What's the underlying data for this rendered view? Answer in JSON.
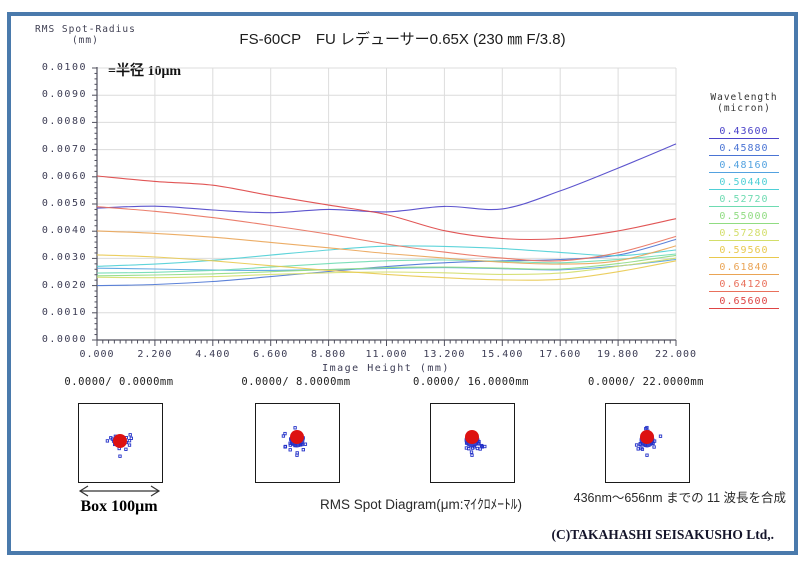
{
  "frame": {
    "border_color": "#4a7aac"
  },
  "chart_data": {
    "type": "line",
    "title": "FS-60CP　FU レデューサー0.65X (230 ㎜ F/3.8)",
    "y_axis_title_line1": "RMS Spot-Radius",
    "y_axis_title_line2": "(mm)",
    "annotation": "=半径 10μm",
    "xlabel": "Image Height (mm)",
    "xlim": [
      0,
      22
    ],
    "ylim": [
      0,
      0.01
    ],
    "grid": true,
    "xticks": [
      "0.000",
      "2.200",
      "4.400",
      "6.600",
      "8.800",
      "11.000",
      "13.200",
      "15.400",
      "17.600",
      "19.800",
      "22.000"
    ],
    "yticks_top_to_bottom": [
      "0.0100",
      "0.0090",
      "0.0080",
      "0.0070",
      "0.0060",
      "0.0050",
      "0.0040",
      "0.0030",
      "0.0020",
      "0.0010",
      "0.0000"
    ],
    "x": [
      0,
      2.2,
      4.4,
      6.6,
      8.8,
      11,
      13.2,
      15.4,
      17.6,
      19.8,
      22
    ],
    "legend": {
      "position": "right",
      "title_line1": "Wavelength",
      "title_line2": "(micron)"
    },
    "series": [
      {
        "name": "0.43600",
        "color": "#4b43c9",
        "values": [
          0.00485,
          0.00492,
          0.00478,
          0.00468,
          0.0048,
          0.00471,
          0.00491,
          0.00482,
          0.00548,
          0.00632,
          0.00721
        ]
      },
      {
        "name": "0.45880",
        "color": "#4a74d4",
        "values": [
          0.002,
          0.00204,
          0.00215,
          0.00233,
          0.00252,
          0.0027,
          0.00284,
          0.00291,
          0.00296,
          0.00312,
          0.0037
        ]
      },
      {
        "name": "0.48160",
        "color": "#53a2e0",
        "values": [
          0.00264,
          0.00261,
          0.00257,
          0.00256,
          0.00259,
          0.00263,
          0.00266,
          0.00262,
          0.00258,
          0.00272,
          0.00296
        ]
      },
      {
        "name": "0.50440",
        "color": "#4ecfd6",
        "values": [
          0.00271,
          0.00279,
          0.00293,
          0.00312,
          0.00331,
          0.00345,
          0.00344,
          0.00336,
          0.00322,
          0.0031,
          0.00331
        ]
      },
      {
        "name": "0.52720",
        "color": "#6edbb2",
        "values": [
          0.00246,
          0.00249,
          0.00256,
          0.00268,
          0.00281,
          0.00291,
          0.00294,
          0.00289,
          0.00284,
          0.00296,
          0.00316
        ]
      },
      {
        "name": "0.55000",
        "color": "#90dc82",
        "values": [
          0.00236,
          0.00239,
          0.00243,
          0.00251,
          0.00259,
          0.00266,
          0.00268,
          0.00264,
          0.00261,
          0.00281,
          0.00311
        ]
      },
      {
        "name": "0.57280",
        "color": "#d3de6a",
        "values": [
          0.00231,
          0.00229,
          0.00233,
          0.00241,
          0.00247,
          0.0025,
          0.00247,
          0.00241,
          0.00246,
          0.00271,
          0.00301
        ]
      },
      {
        "name": "0.59560",
        "color": "#e9c94e",
        "values": [
          0.00313,
          0.00305,
          0.00291,
          0.00273,
          0.00256,
          0.00241,
          0.00229,
          0.00221,
          0.00223,
          0.00251,
          0.00291
        ]
      },
      {
        "name": "0.61840",
        "color": "#eaa455",
        "values": [
          0.00401,
          0.00392,
          0.00378,
          0.00359,
          0.00339,
          0.00318,
          0.00301,
          0.00286,
          0.00279,
          0.00291,
          0.00346
        ]
      },
      {
        "name": "0.64120",
        "color": "#e9705c",
        "values": [
          0.0049,
          0.00473,
          0.0045,
          0.00421,
          0.00389,
          0.00353,
          0.00323,
          0.00301,
          0.00291,
          0.00321,
          0.00381
        ]
      },
      {
        "name": "0.65600",
        "color": "#de4444",
        "values": [
          0.00603,
          0.00583,
          0.00569,
          0.00531,
          0.00496,
          0.00461,
          0.00402,
          0.00373,
          0.00373,
          0.00401,
          0.00446
        ]
      }
    ]
  },
  "spot_diagrams": {
    "items": [
      {
        "label": "0.0000/  0.0000mm",
        "scatter_bias": 0
      },
      {
        "label": "0.0000/  8.0000mm",
        "scatter_bias": 1
      },
      {
        "label": "0.0000/ 16.0000mm",
        "scatter_bias": 1
      },
      {
        "label": "0.0000/ 22.0000mm",
        "scatter_bias": 1
      }
    ],
    "box_scale_label": "Box 100μm",
    "caption": "RMS Spot Diagram(μm:ﾏｲｸﾛﾒｰﾄﾙ)",
    "note": "436nm～656nm までの 11 波長を合成",
    "dot_color": "#dd1111",
    "speckle_color": "#2230c8"
  },
  "footer": {
    "copyright": "(C)TAKAHASHI SEISAKUSHO Ltd,."
  }
}
